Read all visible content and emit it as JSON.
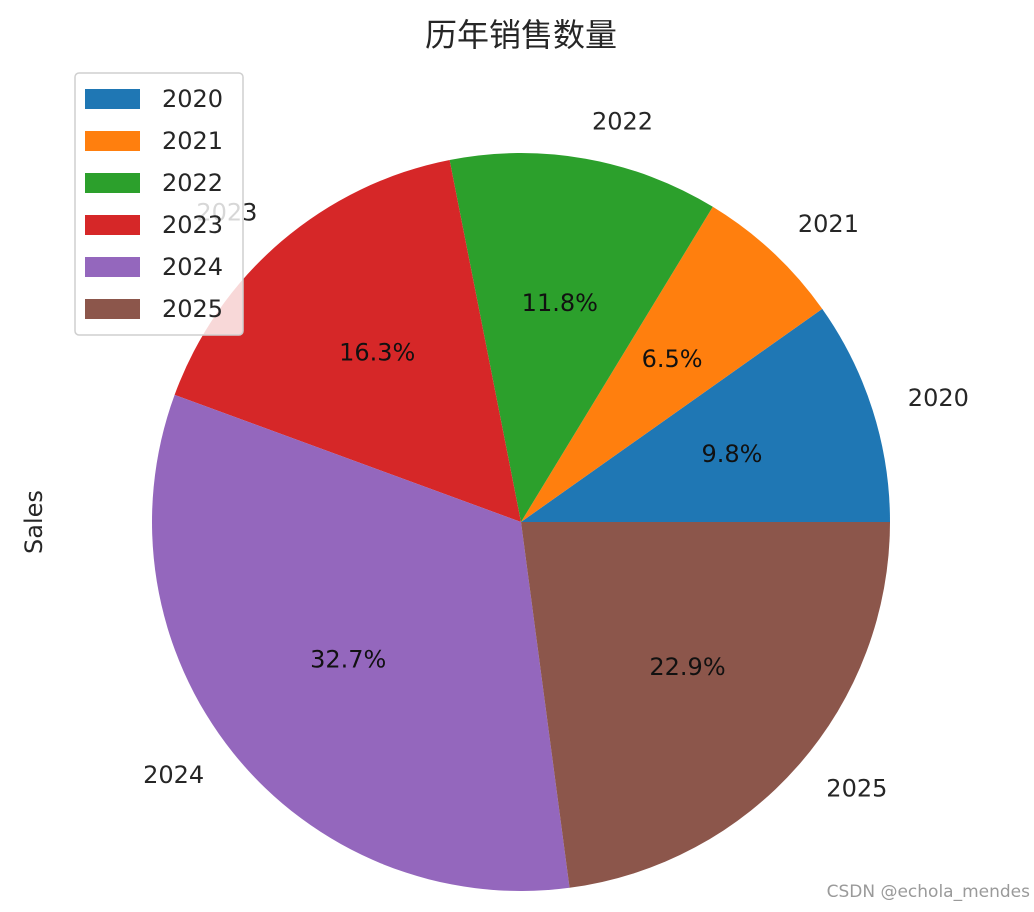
{
  "chart_data": {
    "type": "pie",
    "title": "历年销售数量",
    "ylabel": "Sales",
    "labels": [
      "2020",
      "2021",
      "2022",
      "2023",
      "2024",
      "2025"
    ],
    "percentages": [
      9.8,
      6.5,
      11.8,
      16.3,
      32.7,
      22.9
    ],
    "pct_labels": [
      "9.8%",
      "6.5%",
      "11.8%",
      "16.3%",
      "32.7%",
      "22.9%"
    ],
    "colors": [
      "#1f77b4",
      "#ff7f0e",
      "#2ca02c",
      "#d62728",
      "#9467bd",
      "#8c564b"
    ],
    "start_angle_deg": 0,
    "direction": "counterclockwise",
    "legend": {
      "placement": "upper-left",
      "entries": [
        "2020",
        "2021",
        "2022",
        "2023",
        "2024",
        "2025"
      ]
    }
  },
  "watermark": "CSDN @echola_mendes"
}
